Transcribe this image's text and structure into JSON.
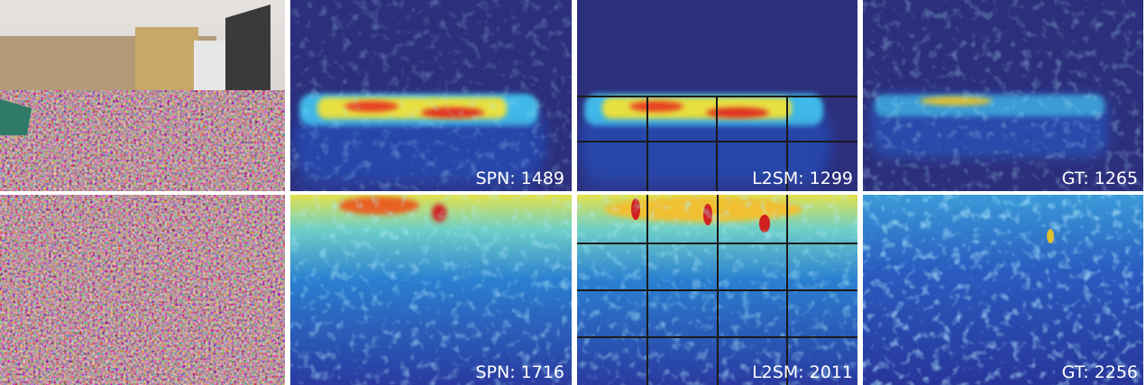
{
  "figure": {
    "rows": [
      {
        "labels": [
          "SPN: 1489",
          "L2SM: 1299",
          "GT: 1265"
        ]
      },
      {
        "labels": [
          "SPN: 1716",
          "L2SM: 2011",
          "GT: 2256"
        ]
      }
    ]
  }
}
